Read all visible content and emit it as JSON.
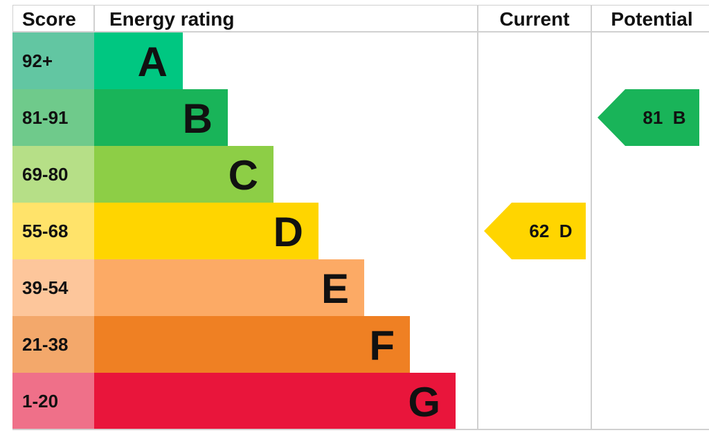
{
  "chart_data": {
    "type": "bar",
    "headers": {
      "score": "Score",
      "rating": "Energy rating",
      "current": "Current",
      "potential": "Potential"
    },
    "bands": [
      {
        "letter": "A",
        "range": "92+",
        "bar_color": "#00c781",
        "score_color": "#62c6a2"
      },
      {
        "letter": "B",
        "range": "81-91",
        "bar_color": "#19b459",
        "score_color": "#6fca8b"
      },
      {
        "letter": "C",
        "range": "69-80",
        "bar_color": "#8dce46",
        "score_color": "#b6df87"
      },
      {
        "letter": "D",
        "range": "55-68",
        "bar_color": "#ffd500",
        "score_color": "#ffe36a"
      },
      {
        "letter": "E",
        "range": "39-54",
        "bar_color": "#fcaa65",
        "score_color": "#fdc69b"
      },
      {
        "letter": "F",
        "range": "21-38",
        "bar_color": "#ef8023",
        "score_color": "#f3a86b"
      },
      {
        "letter": "G",
        "range": "1-20",
        "bar_color": "#e9153b",
        "score_color": "#ef7089"
      }
    ],
    "current": {
      "value": 62,
      "band": "D",
      "label": "62  D",
      "color": "#ffd500"
    },
    "potential": {
      "value": 81,
      "band": "B",
      "label": "81  B",
      "color": "#19b459"
    }
  }
}
